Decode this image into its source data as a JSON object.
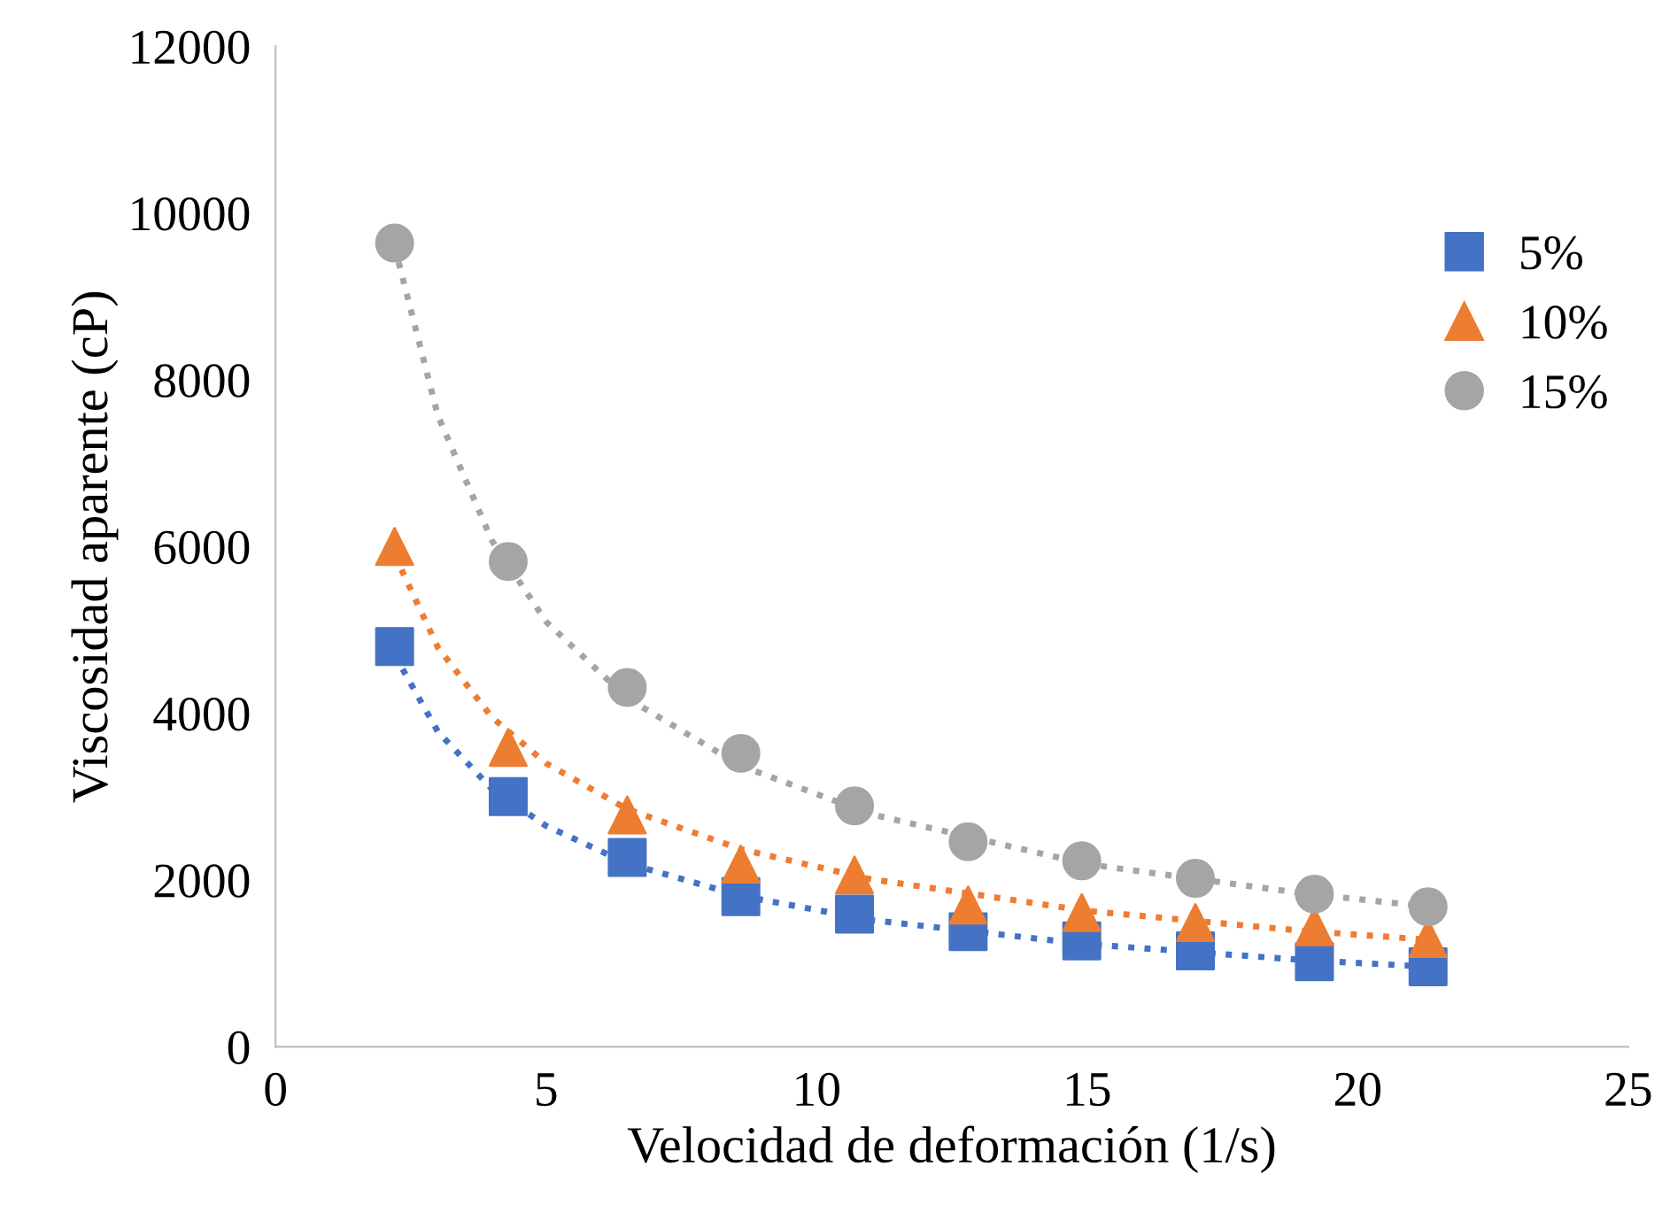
{
  "chart_data": {
    "type": "scatter",
    "xlabel": "Velocidad de deformación (1/s)",
    "ylabel": "Viscosidad aparente (cP)",
    "x": [
      2.2,
      4.3,
      6.5,
      8.6,
      10.7,
      12.8,
      14.9,
      17.0,
      19.2,
      21.3
    ],
    "series": [
      {
        "name": "5%",
        "color": "#4472c4",
        "marker": "square",
        "values": [
          4800,
          3000,
          2270,
          1800,
          1590,
          1380,
          1270,
          1150,
          1020,
          960
        ]
      },
      {
        "name": "10%",
        "color": "#ed7d31",
        "marker": "triangle",
        "values": [
          6000,
          3590,
          2780,
          2190,
          2060,
          1700,
          1610,
          1490,
          1440,
          1300
        ]
      },
      {
        "name": "15%",
        "color": "#a5a5a5",
        "marker": "circle",
        "values": [
          9640,
          5820,
          4310,
          3520,
          2890,
          2460,
          2230,
          2020,
          1830,
          1680
        ]
      },
      {
        "type": "line",
        "color": "#4472c4",
        "line_style": "dotted",
        "marker": "none",
        "x": [
          2.2,
          3,
          4,
          5,
          6.5,
          8.6,
          11,
          15,
          19,
          21.6
        ],
        "values": [
          4700,
          3780,
          3090,
          2650,
          2200,
          1810,
          1520,
          1230,
          1040,
          950
        ]
      },
      {
        "type": "line",
        "color": "#ed7d31",
        "line_style": "dotted",
        "marker": "none",
        "x": [
          2.2,
          3,
          4,
          5,
          6.5,
          8.6,
          11,
          15,
          19,
          21.6
        ],
        "values": [
          5900,
          4790,
          3950,
          3400,
          2850,
          2370,
          2010,
          1630,
          1390,
          1270
        ]
      },
      {
        "type": "line",
        "color": "#a5a5a5",
        "line_style": "dotted",
        "marker": "none",
        "x": [
          2.2,
          3,
          4,
          5,
          6.5,
          8.6,
          11,
          15,
          19,
          21.6
        ],
        "values": [
          9600,
          7570,
          6070,
          5100,
          4180,
          3370,
          2790,
          2190,
          1840,
          1660
        ]
      }
    ],
    "xlim": [
      0,
      25
    ],
    "xticks": [
      0,
      5,
      10,
      15,
      20,
      25
    ],
    "ylim": [
      0,
      12000
    ],
    "yticks": [
      0,
      2000,
      4000,
      6000,
      8000,
      10000,
      12000
    ],
    "grid": false,
    "legend": "right"
  }
}
